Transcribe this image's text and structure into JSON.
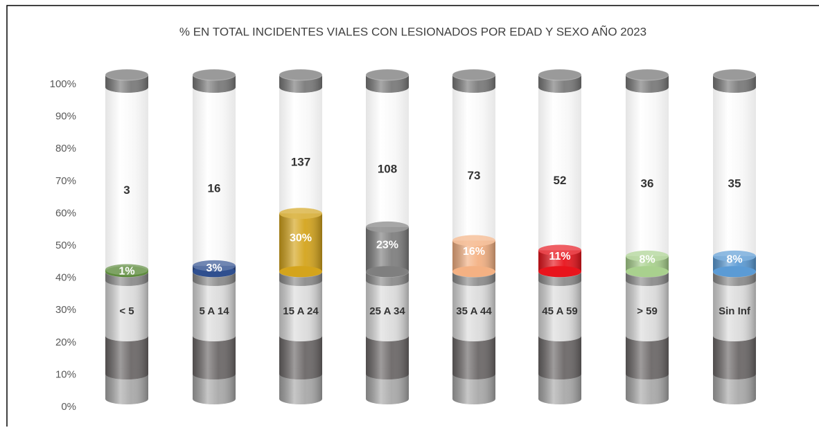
{
  "chart_data": {
    "type": "cylinder",
    "title": "% EN TOTAL INCIDENTES VIALES CON LESIONADOS  POR EDAD Y SEXO AÑO 2023",
    "categories": [
      "< 5",
      "5 A 14",
      "15 A 24",
      "25 A 34",
      "35 A 44",
      "45 A 59",
      "> 59",
      "Sin Inf"
    ],
    "counts": [
      3,
      16,
      137,
      108,
      73,
      52,
      36,
      35
    ],
    "values": [
      1,
      3,
      30,
      23,
      16,
      11,
      8,
      8
    ],
    "value_labels": [
      "1%",
      "3%",
      "30%",
      "23%",
      "16%",
      "11%",
      "8%",
      "8%"
    ],
    "colors": [
      "#5e8c3e",
      "#2f4f8f",
      "#d4a41c",
      "#7f7f7f",
      "#f4b183",
      "#e8141c",
      "#a9d18e",
      "#5b9bd5"
    ],
    "ylim": [
      0,
      100
    ],
    "yticks": [
      {
        "value": 0,
        "label": "0%"
      },
      {
        "value": 10,
        "label": "10%"
      },
      {
        "value": 20,
        "label": "20%"
      },
      {
        "value": 30,
        "label": "30%"
      },
      {
        "value": 40,
        "label": "40%"
      },
      {
        "value": 50,
        "label": "50%"
      },
      {
        "value": 60,
        "label": "60%"
      },
      {
        "value": 70,
        "label": "70%"
      },
      {
        "value": 80,
        "label": "80%"
      },
      {
        "value": 90,
        "label": "90%"
      },
      {
        "value": 100,
        "label": "100%"
      }
    ]
  }
}
